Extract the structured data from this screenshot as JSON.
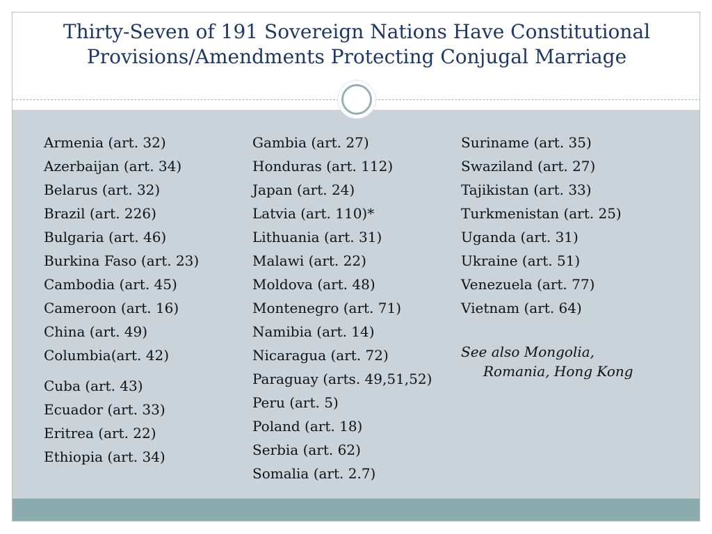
{
  "title": {
    "line1": "Thirty-Seven of 191 Sovereign Nations Have Constitutional",
    "line2": "Provisions/Amendments Protecting Conjugal Marriage"
  },
  "columns": [
    [
      "Armenia (art. 32)",
      "Azerbaijan (art. 34)",
      "Belarus (art. 32)",
      "Brazil (art. 226)",
      "Bulgaria (art. 46)",
      "Burkina Faso (art. 23)",
      "Cambodia (art. 45)",
      "Cameroon (art. 16)",
      "China (art. 49)",
      "Columbia(art. 42)",
      "Cuba (art. 43)",
      "Ecuador (art. 33)",
      "Eritrea (art. 22)",
      "Ethiopia (art. 34)"
    ],
    [
      "Gambia (art. 27)",
      "Honduras (art. 112)",
      "Japan (art. 24)",
      "Latvia (art. 110)*",
      "Lithuania (art. 31)",
      "Malawi (art. 22)",
      "Moldova (art. 48)",
      "Montenegro (art. 71)",
      "Namibia  (art. 14)",
      "Nicaragua (art. 72)",
      "Paraguay (arts. 49,51,52)",
      "Peru (art. 5)",
      "Poland (art. 18)",
      "Serbia  (art. 62)",
      "Somalia (art. 2.7)"
    ],
    [
      "Suriname  (art. 35)",
      "Swaziland  (art. 27)",
      "Tajikistan (art. 33)",
      "Turkmenistan (art. 25)",
      "Uganda (art. 31)",
      "Ukraine (art. 51)",
      "Venezuela (art. 77)",
      "Vietnam (art. 64)"
    ]
  ],
  "see_also": {
    "line1": "See also Mongolia,",
    "line2": "Romania, Hong Kong"
  },
  "colors": {
    "title": "#1f3763",
    "panel": "#c9d3d9",
    "footer_bar": "#8aacaf"
  }
}
